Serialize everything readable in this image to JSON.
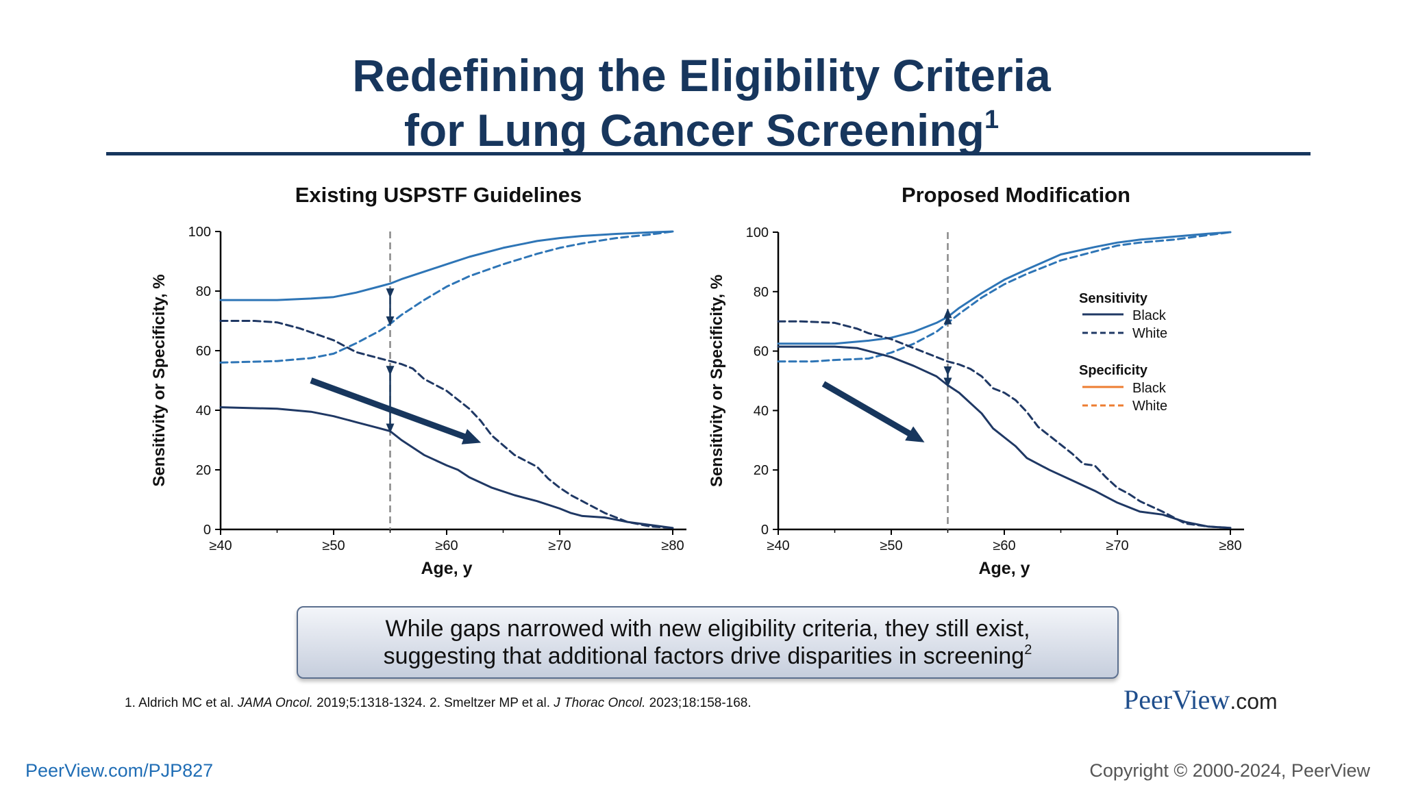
{
  "slide": {
    "title_line1": "Redefining the Eligibility Criteria",
    "title_line2": "for Lung Cancer Screening",
    "title_sup": "1",
    "callout_line1": "While gaps narrowed with new eligibility criteria, they still exist,",
    "callout_line2": "suggesting that additional factors drive disparities in screening",
    "callout_sup": "2",
    "refs": {
      "r1_pre": "1. Aldrich MC et al. ",
      "r1_journal": "JAMA Oncol.",
      "r1_post": " 2019;5:1318-1324. 2. Smeltzer MP et al. ",
      "r2_journal": "J Thorac Oncol.",
      "r2_post": " 2023;18:158-168."
    },
    "brand_main": "PeerView",
    "brand_suffix": ".com",
    "footer_url": "PeerView.com/PJP827",
    "copyright": "Copyright © 2000-2024, PeerView"
  },
  "colors": {
    "title": "#17365d",
    "sensitivity": "#2e75b6",
    "specificity": "#1f3864",
    "arrow": "#17365d",
    "legend_specificity": "#ed7d31"
  },
  "legend": {
    "sens_title": "Sensitivity",
    "spec_title": "Specificity",
    "black": "Black",
    "white": "White"
  },
  "chart_data": [
    {
      "type": "line",
      "title": "Existing USPSTF Guidelines",
      "xlabel": "Age, y",
      "ylabel": "Sensitivity or Specificity, %",
      "x_ticks": [
        "≥40",
        "≥50",
        "≥60",
        "≥70",
        "≥80"
      ],
      "ylim": [
        0,
        100
      ],
      "y_ticks": [
        0,
        20,
        40,
        60,
        80,
        100
      ],
      "reference_line_x": 55,
      "series": [
        {
          "name": "Sensitivity Black",
          "x": [
            40,
            45,
            48,
            50,
            52,
            54,
            55,
            56,
            58,
            60,
            62,
            65,
            68,
            70,
            72,
            75,
            78,
            80
          ],
          "y": [
            77,
            77,
            77.5,
            78,
            79.5,
            81.5,
            82.5,
            84,
            86.5,
            89,
            91.5,
            94.5,
            96.8,
            97.8,
            98.5,
            99.2,
            99.7,
            100
          ]
        },
        {
          "name": "Sensitivity White",
          "x": [
            40,
            45,
            48,
            50,
            52,
            54,
            55,
            56,
            58,
            60,
            62,
            65,
            68,
            70,
            72,
            75,
            78,
            80
          ],
          "y": [
            56,
            56.5,
            57.5,
            59,
            62.5,
            66.5,
            69,
            72,
            77,
            81.5,
            85,
            89,
            92.5,
            94.5,
            96,
            97.8,
            99,
            100
          ]
        },
        {
          "name": "Specificity Black",
          "x": [
            40,
            45,
            48,
            50,
            52,
            54,
            55,
            56,
            57,
            58,
            60,
            61,
            62,
            64,
            66,
            68,
            70,
            71,
            72,
            74,
            76,
            78,
            80
          ],
          "y": [
            41,
            40.5,
            39.5,
            38,
            36,
            34,
            33,
            30,
            27.5,
            25,
            21.5,
            20,
            17.5,
            14,
            11.5,
            9.5,
            7,
            5.5,
            4.5,
            4,
            2.5,
            1.5,
            0.5
          ]
        },
        {
          "name": "Specificity White",
          "x": [
            40,
            43,
            45,
            47,
            50,
            52,
            54,
            55,
            56,
            57,
            58,
            60,
            62,
            63,
            64,
            66,
            67,
            68,
            69,
            70,
            71,
            72,
            74,
            76,
            78,
            80
          ],
          "y": [
            70,
            70,
            69.5,
            67.5,
            63.5,
            59.5,
            57.5,
            56.5,
            55.5,
            54,
            50.5,
            46.5,
            40.5,
            36.5,
            31.5,
            25,
            23,
            21,
            17,
            14,
            11.5,
            9.5,
            5.5,
            2.5,
            1,
            0.5
          ]
        }
      ]
    },
    {
      "type": "line",
      "title": "Proposed Modification",
      "xlabel": "Age, y",
      "ylabel": "Sensitivity or Specificity, %",
      "x_ticks": [
        "≥40",
        "≥50",
        "≥60",
        "≥70",
        "≥80"
      ],
      "ylim": [
        0,
        100
      ],
      "y_ticks": [
        0,
        20,
        40,
        60,
        80,
        100
      ],
      "reference_line_x": 55,
      "legend_position": "right",
      "series": [
        {
          "name": "Sensitivity Black",
          "x": [
            40,
            43,
            45,
            48,
            50,
            52,
            54,
            55,
            56,
            58,
            60,
            62,
            65,
            68,
            70,
            72,
            75,
            78,
            80
          ],
          "y": [
            62.5,
            62.5,
            62.5,
            63.5,
            64.5,
            66.5,
            69.5,
            71.5,
            74.5,
            79.5,
            84,
            87.5,
            92.5,
            95,
            96.5,
            97.5,
            98.5,
            99.5,
            100
          ]
        },
        {
          "name": "Sensitivity White",
          "x": [
            40,
            43,
            45,
            48,
            50,
            52,
            54,
            55,
            56,
            58,
            60,
            62,
            65,
            68,
            70,
            72,
            75,
            78,
            80
          ],
          "y": [
            56.5,
            56.5,
            57,
            57.5,
            59.5,
            62.5,
            66.5,
            69.5,
            72.5,
            78,
            82.5,
            86,
            90.5,
            93.5,
            95.5,
            96.5,
            97.5,
            99,
            100
          ]
        },
        {
          "name": "Specificity Black",
          "x": [
            40,
            43,
            45,
            47,
            48,
            50,
            52,
            54,
            55,
            56,
            58,
            59,
            60,
            61,
            62,
            64,
            66,
            68,
            69,
            70,
            72,
            74,
            76,
            78,
            80
          ],
          "y": [
            61.5,
            61.5,
            61.5,
            61,
            60,
            58,
            55,
            51.5,
            48.5,
            46,
            39,
            34,
            31,
            28,
            24,
            20,
            16.5,
            13,
            11,
            9,
            6,
            5,
            2.5,
            1,
            0.5
          ]
        },
        {
          "name": "Specificity White",
          "x": [
            40,
            42,
            45,
            47,
            48,
            50,
            52,
            54,
            55,
            56,
            57,
            58,
            59,
            60,
            61,
            62,
            63,
            65,
            66,
            67,
            68,
            69,
            70,
            71,
            72,
            74,
            76,
            78,
            80
          ],
          "y": [
            70,
            70,
            69.5,
            67.5,
            66,
            64,
            61,
            58,
            56.5,
            55.5,
            54,
            51.5,
            47.5,
            46,
            43.5,
            39.5,
            34.5,
            28.5,
            25.5,
            22,
            21.5,
            17.5,
            14,
            12,
            9.5,
            6,
            2,
            1,
            0.5
          ]
        }
      ]
    }
  ]
}
